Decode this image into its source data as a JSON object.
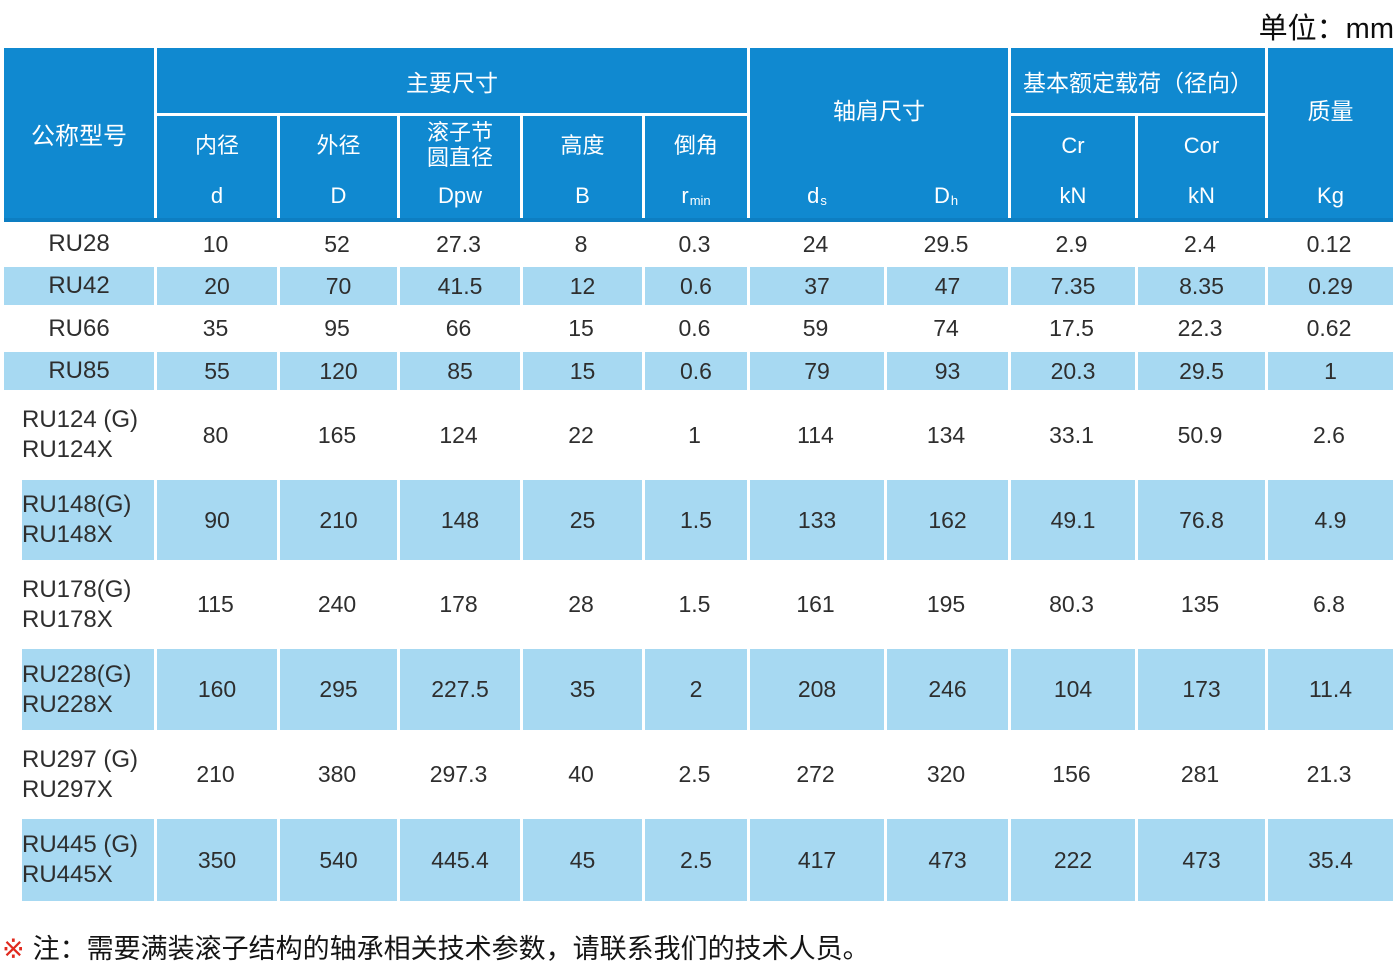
{
  "unit_label": "单位：mm",
  "colors": {
    "header_blue": "#1089D0",
    "row_blue": "#A7D9F2",
    "note_marker_red": "#E02A1E"
  },
  "table": {
    "header": {
      "model": "公称型号",
      "main_dims": "主要尺寸",
      "cols": {
        "inner": {
          "label": "内径",
          "sym": "d"
        },
        "outer": {
          "label": "外径",
          "sym": "D"
        },
        "pitch": {
          "label_line1": "滚子节",
          "label_line2": "圆直径",
          "sym": "Dpw"
        },
        "height": {
          "label": "高度",
          "sym": "B"
        },
        "chamfer": {
          "label": "倒角",
          "sym_base": "r",
          "sym_sub": "min"
        },
        "shoulder": {
          "label": "轴肩尺寸",
          "ds_base": "d",
          "ds_sub": "s",
          "dh_base": "D",
          "dh_sub": "h"
        },
        "load": {
          "label": "基本额定载荷（径向）",
          "cr": "Cr",
          "cor": "Cor",
          "cr_unit": "kN",
          "cor_unit": "kN"
        },
        "mass": {
          "label": "质量",
          "sym": "Kg"
        }
      }
    },
    "rows": [
      {
        "model": [
          "RU28"
        ],
        "values": [
          "10",
          "52",
          "27.3",
          "8",
          "0.3",
          "24",
          "29.5",
          "2.9",
          "2.4",
          "0.12"
        ]
      },
      {
        "model": [
          "RU42"
        ],
        "values": [
          "20",
          "70",
          "41.5",
          "12",
          "0.6",
          "37",
          "47",
          "7.35",
          "8.35",
          "0.29"
        ]
      },
      {
        "model": [
          "RU66"
        ],
        "values": [
          "35",
          "95",
          "66",
          "15",
          "0.6",
          "59",
          "74",
          "17.5",
          "22.3",
          "0.62"
        ]
      },
      {
        "model": [
          "RU85"
        ],
        "values": [
          "55",
          "120",
          "85",
          "15",
          "0.6",
          "79",
          "93",
          "20.3",
          "29.5",
          "1"
        ]
      },
      {
        "model": [
          "RU124 (G)",
          "RU124X"
        ],
        "values": [
          "80",
          "165",
          "124",
          "22",
          "1",
          "114",
          "134",
          "33.1",
          "50.9",
          "2.6"
        ]
      },
      {
        "model": [
          "RU148(G)",
          "RU148X"
        ],
        "values": [
          "90",
          "210",
          "148",
          "25",
          "1.5",
          "133",
          "162",
          "49.1",
          "76.8",
          "4.9"
        ]
      },
      {
        "model": [
          "RU178(G)",
          "RU178X"
        ],
        "values": [
          "115",
          "240",
          "178",
          "28",
          "1.5",
          "161",
          "195",
          "80.3",
          "135",
          "6.8"
        ]
      },
      {
        "model": [
          "RU228(G)",
          "RU228X"
        ],
        "values": [
          "160",
          "295",
          "227.5",
          "35",
          "2",
          "208",
          "246",
          "104",
          "173",
          "11.4"
        ]
      },
      {
        "model": [
          "RU297 (G)",
          "RU297X"
        ],
        "values": [
          "210",
          "380",
          "297.3",
          "40",
          "2.5",
          "272",
          "320",
          "156",
          "281",
          "21.3"
        ]
      },
      {
        "model": [
          "RU445 (G)",
          "RU445X"
        ],
        "values": [
          "350",
          "540",
          "445.4",
          "45",
          "2.5",
          "417",
          "473",
          "222",
          "473",
          "35.4"
        ]
      }
    ]
  },
  "note": {
    "marker": "※",
    "text": "注：需要满装滚子结构的轴承相关技术参数，请联系我们的技术人员。"
  }
}
